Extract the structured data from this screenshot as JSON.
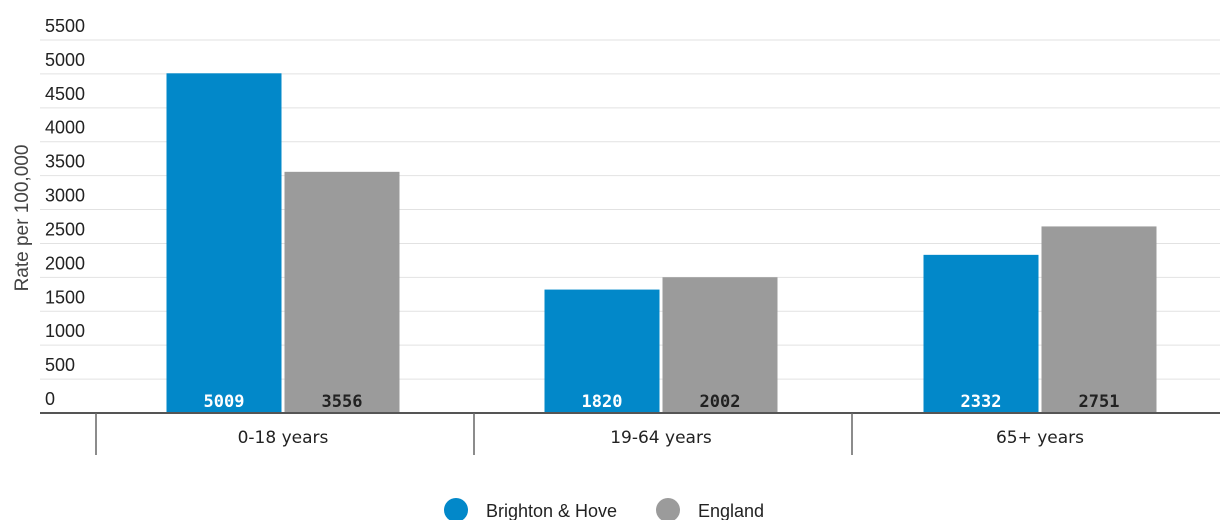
{
  "chart_data": {
    "type": "bar",
    "title": "",
    "xlabel": "",
    "ylabel": "Rate per 100,000",
    "ylim": [
      0,
      5500
    ],
    "yticks": [
      0,
      500,
      1000,
      1500,
      2000,
      2500,
      3000,
      3500,
      4000,
      4500,
      5000,
      5500
    ],
    "categories": [
      "0-18 years",
      "19-64 years",
      "65+ years"
    ],
    "series": [
      {
        "name": "Brighton & Hove",
        "values": [
          5009,
          1820,
          2332
        ],
        "color": "#0288c9",
        "label_color": "#ffffff"
      },
      {
        "name": "England",
        "values": [
          3556,
          2002,
          2751
        ],
        "color": "#9b9b9b",
        "label_color": "#222222"
      }
    ],
    "grid": true,
    "legend_position": "bottom-center"
  }
}
